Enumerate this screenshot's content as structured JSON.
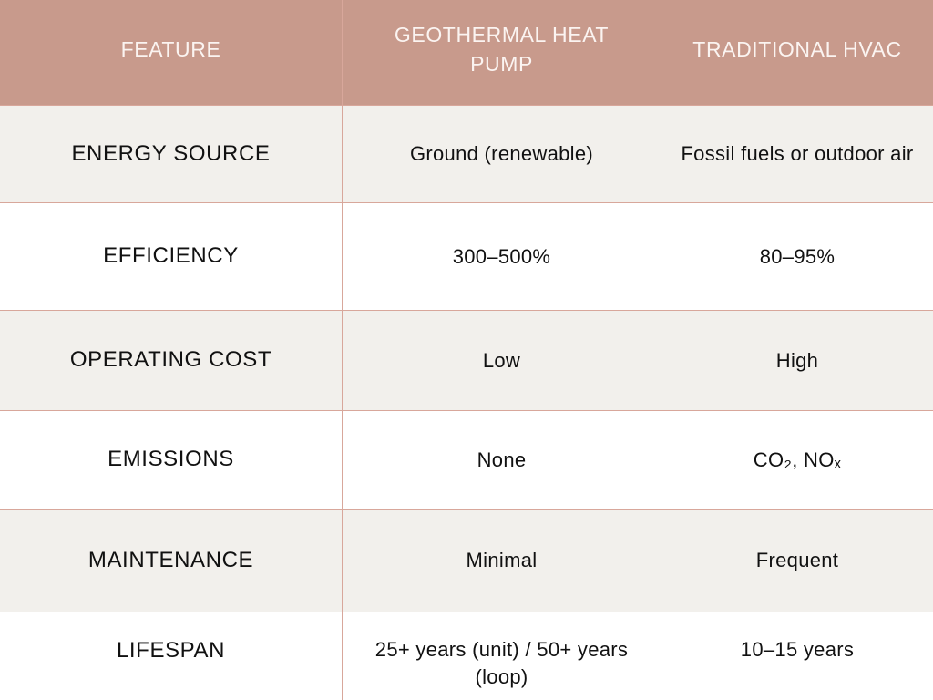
{
  "table": {
    "headers": [
      "FEATURE",
      "GEOTHERMAL HEAT PUMP",
      "TRADITIONAL HVAC"
    ],
    "rows": [
      [
        "ENERGY SOURCE",
        "Ground (renewable)",
        "Fossil fuels or outdoor air"
      ],
      [
        "EFFICIENCY",
        "300–500%",
        "80–95%"
      ],
      [
        "OPERATING COST",
        "Low",
        "High"
      ],
      [
        "EMISSIONS",
        "None",
        "CO₂, NOₓ"
      ],
      [
        "MAINTENANCE",
        "Minimal",
        "Frequent"
      ],
      [
        "LIFESPAN",
        "25+ years (unit) / 50+ years (loop)",
        "10–15 years"
      ]
    ]
  },
  "colors": {
    "header_background": "#c89a8c",
    "header_text": "#fbf4f1",
    "row_shaded": "#f2f0ec",
    "row_plain": "#ffffff",
    "grid_line": "#d8a79b"
  }
}
